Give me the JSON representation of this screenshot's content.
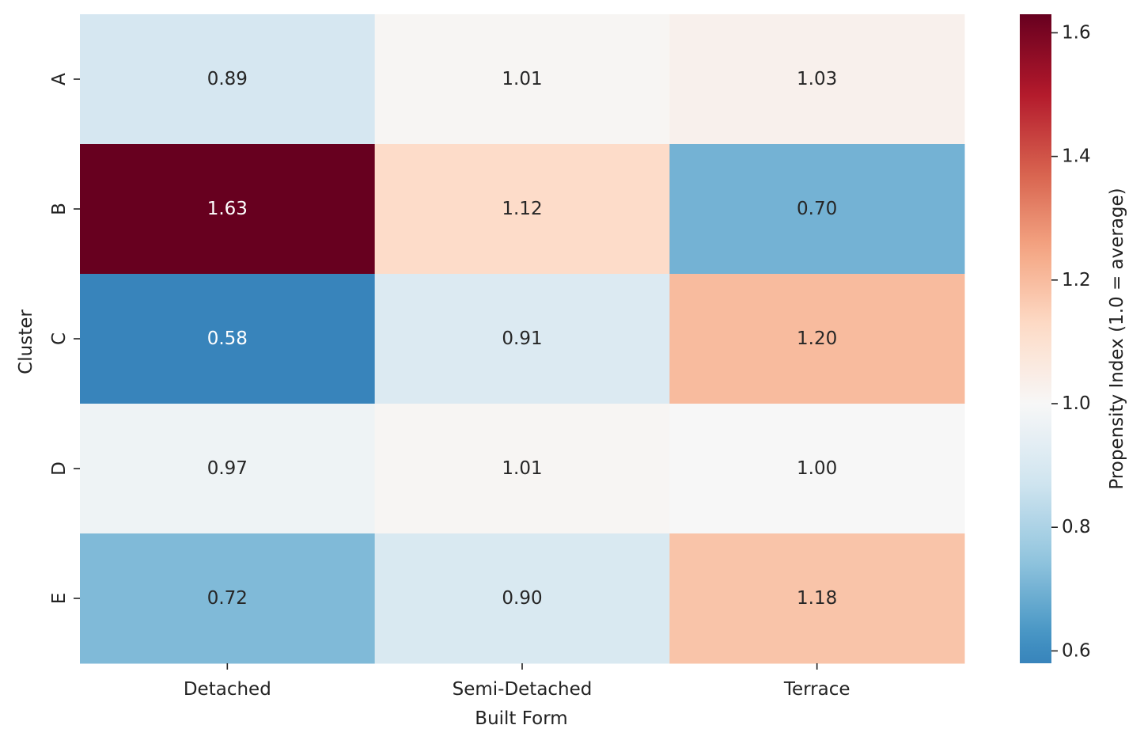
{
  "chart_data": {
    "type": "heatmap",
    "title": "",
    "xlabel": "Built Form",
    "ylabel": "Cluster",
    "x_categories": [
      "Detached",
      "Semi-Detached",
      "Terrace"
    ],
    "y_categories": [
      "A",
      "B",
      "C",
      "D",
      "E"
    ],
    "values": [
      [
        0.89,
        1.01,
        1.03
      ],
      [
        1.63,
        1.12,
        0.7
      ],
      [
        0.58,
        0.91,
        1.2
      ],
      [
        0.97,
        1.01,
        1.0
      ],
      [
        0.72,
        0.9,
        1.18
      ]
    ],
    "annotations": [
      [
        "0.89",
        "1.01",
        "1.03"
      ],
      [
        "1.63",
        "1.12",
        "0.70"
      ],
      [
        "0.58",
        "0.91",
        "1.20"
      ],
      [
        "0.97",
        "1.01",
        "1.00"
      ],
      [
        "0.72",
        "0.90",
        "1.18"
      ]
    ],
    "colormap": "RdBu_r",
    "center": 1.0,
    "vmin": 0.58,
    "vmax": 1.63,
    "colorbar": {
      "label": "Propensity Index (1.0 = average)",
      "ticks": [
        0.6,
        0.8,
        1.0,
        1.2,
        1.4,
        1.6
      ],
      "tick_labels": [
        "0.6",
        "0.8",
        "1.0",
        "1.2",
        "1.4",
        "1.6"
      ],
      "range": [
        0.58,
        1.63
      ]
    },
    "grid": false,
    "legend": "colorbar-right"
  }
}
